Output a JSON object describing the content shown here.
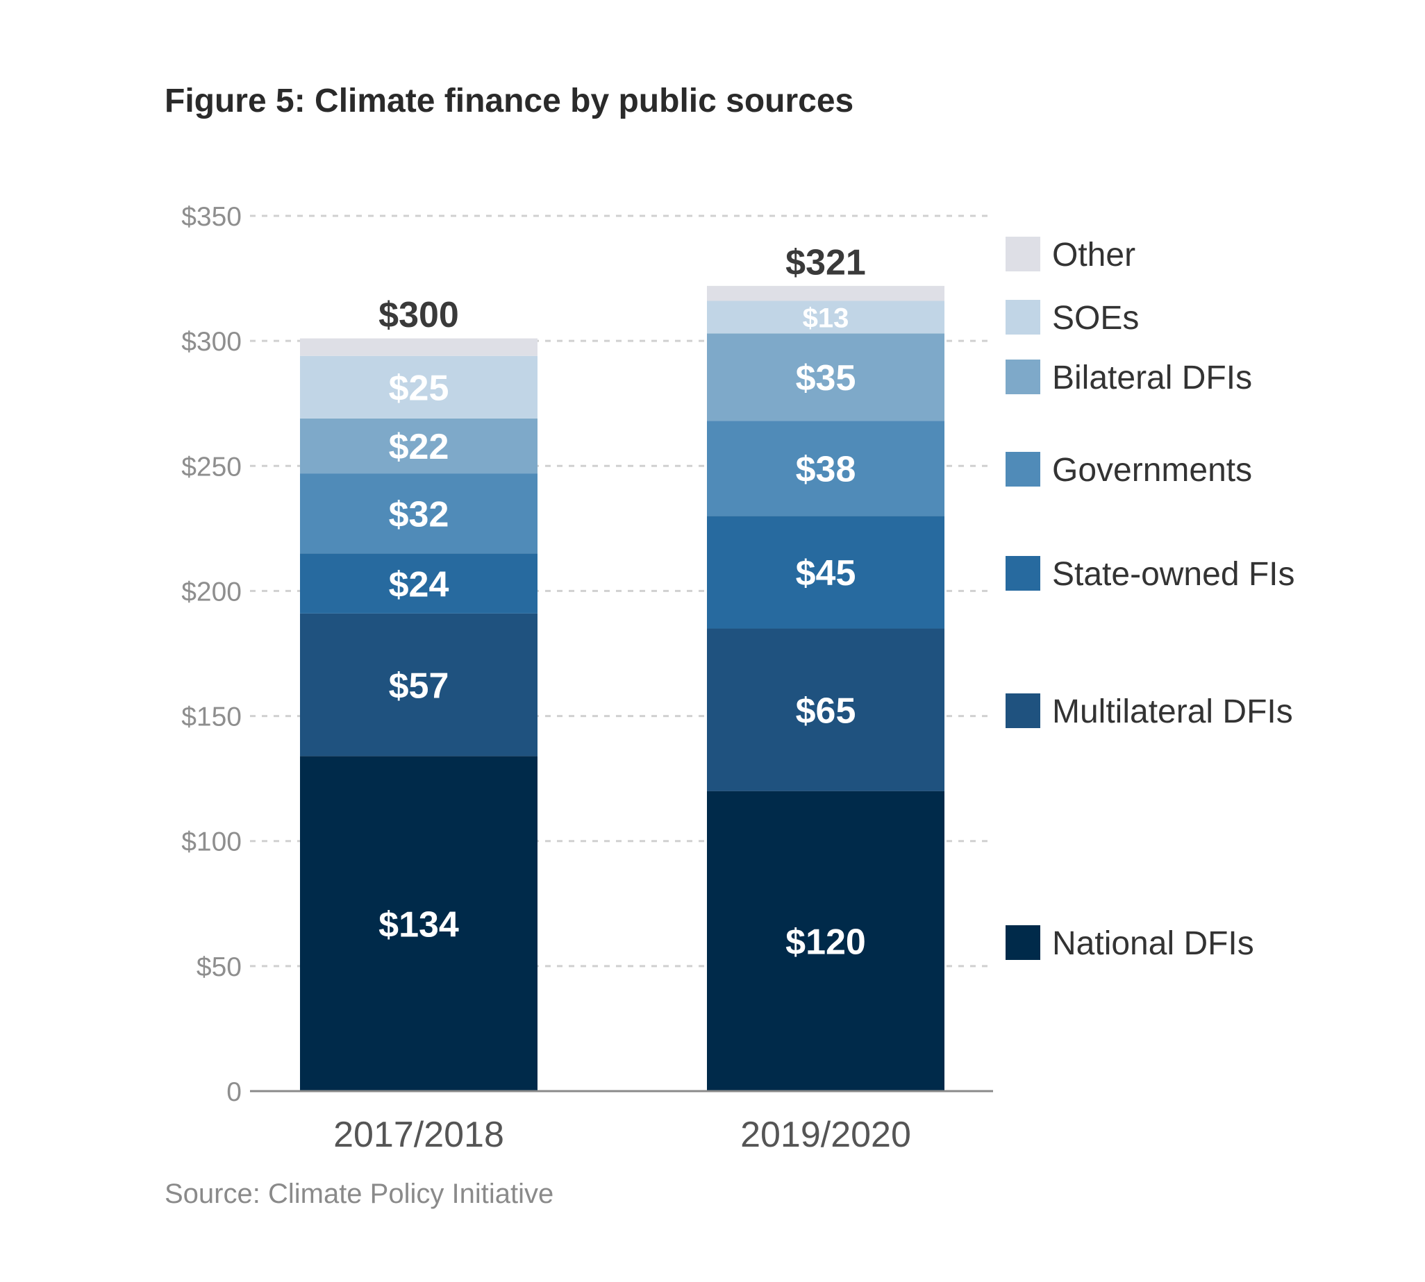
{
  "chart_data": {
    "type": "bar",
    "stacked": true,
    "title": "Figure 5: Climate finance by public sources",
    "source": "Source: Climate Policy Initiative",
    "categories": [
      "2017/2018",
      "2019/2020"
    ],
    "totals": [
      300,
      321
    ],
    "total_labels": [
      "$300",
      "$321"
    ],
    "series": [
      {
        "name": "National DFIs",
        "color": "#002a4a",
        "values": [
          134,
          120
        ],
        "labels": [
          "$134",
          "$120"
        ]
      },
      {
        "name": "Multilateral DFIs",
        "color": "#1f527f",
        "values": [
          57,
          65
        ],
        "labels": [
          "$57",
          "$65"
        ]
      },
      {
        "name": "State-owned FIs",
        "color": "#276a9f",
        "values": [
          24,
          45
        ],
        "labels": [
          "$24",
          "$45"
        ]
      },
      {
        "name": "Governments",
        "color": "#508bb8",
        "values": [
          32,
          38
        ],
        "labels": [
          "$32",
          "$38"
        ]
      },
      {
        "name": "Bilateral DFIs",
        "color": "#7ea9c9",
        "values": [
          22,
          35
        ],
        "labels": [
          "$22",
          "$35"
        ]
      },
      {
        "name": "SOEs",
        "color": "#c1d5e6",
        "values": [
          25,
          13
        ],
        "labels": [
          "$25",
          "$13"
        ]
      },
      {
        "name": "Other",
        "color": "#dedfe6",
        "values": [
          7,
          6
        ],
        "labels": [
          "",
          ""
        ]
      }
    ],
    "yticks": [
      0,
      50,
      100,
      150,
      200,
      250,
      300,
      350
    ],
    "ytick_labels": [
      "0",
      "$50",
      "$100",
      "$150",
      "$200",
      "$250",
      "$300",
      "$350"
    ],
    "ylim": [
      0,
      350
    ],
    "grid": true,
    "legend_position": "right",
    "legend_order": [
      "Other",
      "SOEs",
      "Bilateral DFIs",
      "Governments",
      "State-owned FIs",
      "Multilateral DFIs",
      "National DFIs"
    ]
  }
}
